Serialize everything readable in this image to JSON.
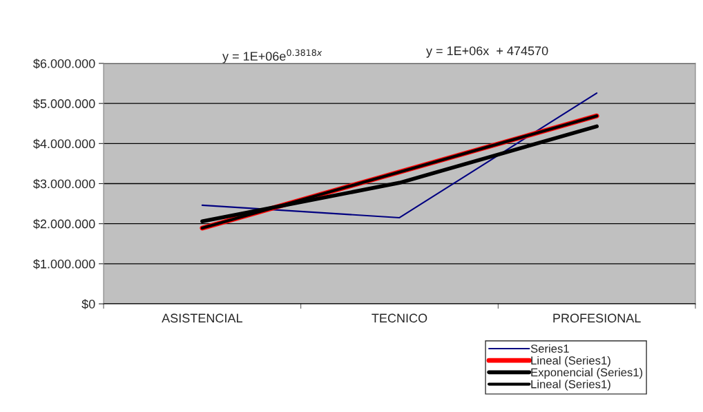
{
  "chart_data": {
    "type": "line",
    "categories": [
      "ASISTENCIAL",
      "TECNICO",
      "PROFESIONAL"
    ],
    "series": [
      {
        "name": "Series1",
        "color": "#000080",
        "values": [
          2460000,
          2150000,
          5260000
        ]
      },
      {
        "name": "Lineal (Series1)",
        "color": "#ff0000",
        "values": [
          1890000,
          3290000,
          4690000
        ]
      },
      {
        "name": "Exponencial (Series1)",
        "color": "#000000",
        "values": [
          2060000,
          3020000,
          4430000
        ]
      },
      {
        "name": "Lineal (Series1)",
        "color": "#000000",
        "values": [
          1890000,
          3290000,
          4690000
        ]
      }
    ],
    "ylim": [
      0,
      6000000
    ],
    "yticks": [
      {
        "value": 0,
        "label": "$0"
      },
      {
        "value": 1000000,
        "label": "$1.000.000"
      },
      {
        "value": 2000000,
        "label": "$2.000.000"
      },
      {
        "value": 3000000,
        "label": "$3.000.000"
      },
      {
        "value": 4000000,
        "label": "$4.000.000"
      },
      {
        "value": 5000000,
        "label": "$5.000.000"
      },
      {
        "value": 6000000,
        "label": "$6.000.000"
      }
    ],
    "grid": "y",
    "legend": "bottom right",
    "marker": "none",
    "line_style": "solid",
    "annotations": [
      "y = 1E+06e$^{0.3818x}$",
      "y = 1E+06x  + 474570"
    ]
  }
}
